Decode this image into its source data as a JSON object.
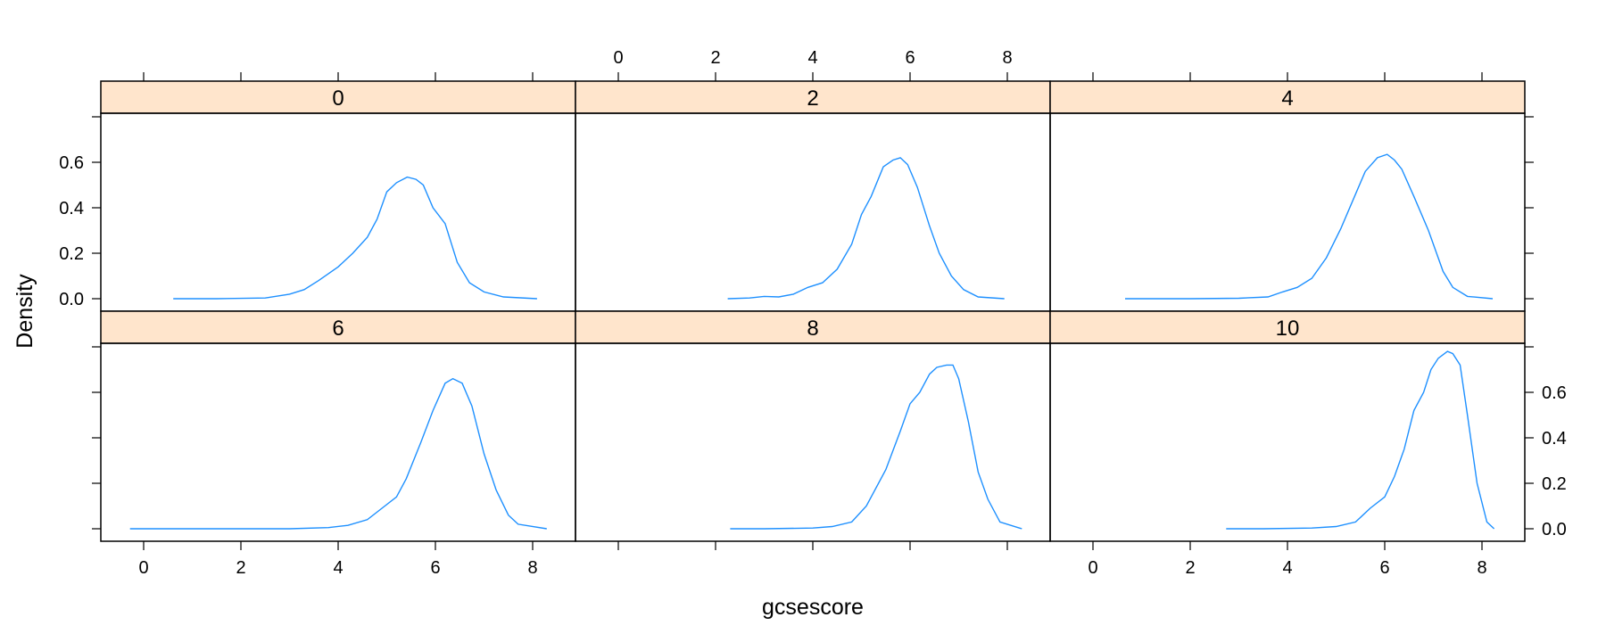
{
  "chart_data": {
    "type": "line",
    "title": "",
    "xlabel": "gcsescore",
    "ylabel": "Density",
    "layout": {
      "columns": 3,
      "rows": 2
    },
    "xlim": [
      -0.9,
      8.9
    ],
    "ylim": [
      0.0,
      0.8
    ],
    "xticks": [
      0,
      2,
      4,
      6,
      8
    ],
    "yticks": [
      0.0,
      0.2,
      0.4,
      0.6
    ],
    "ytick_labels": [
      "0.0",
      "0.2",
      "0.4",
      "0.6"
    ],
    "grid": false,
    "legend": null,
    "line_color": "#1E90FF",
    "strip_color": "#FFE5CC",
    "panels": [
      {
        "label": "0",
        "row": 0,
        "col": 0,
        "x": [
          0.61,
          1.5,
          2.5,
          3.0,
          3.3,
          3.6,
          4.0,
          4.3,
          4.6,
          4.8,
          5.0,
          5.2,
          5.42,
          5.6,
          5.75,
          5.95,
          6.2,
          6.45,
          6.7,
          7.0,
          7.4,
          8.09
        ],
        "y": [
          0.0,
          0.0,
          0.003,
          0.02,
          0.04,
          0.08,
          0.14,
          0.2,
          0.27,
          0.35,
          0.47,
          0.51,
          0.535,
          0.525,
          0.5,
          0.4,
          0.33,
          0.16,
          0.07,
          0.03,
          0.008,
          0.0
        ]
      },
      {
        "label": "2",
        "row": 0,
        "col": 1,
        "x": [
          2.25,
          2.7,
          3.0,
          3.3,
          3.6,
          3.9,
          4.2,
          4.5,
          4.8,
          5.0,
          5.2,
          5.45,
          5.65,
          5.8,
          5.95,
          6.15,
          6.4,
          6.6,
          6.85,
          7.1,
          7.4,
          7.94
        ],
        "y": [
          0.0,
          0.003,
          0.01,
          0.008,
          0.02,
          0.05,
          0.07,
          0.13,
          0.24,
          0.37,
          0.45,
          0.58,
          0.61,
          0.62,
          0.59,
          0.49,
          0.32,
          0.2,
          0.1,
          0.04,
          0.008,
          0.0
        ]
      },
      {
        "label": "4",
        "row": 0,
        "col": 2,
        "x": [
          0.66,
          2.0,
          3.0,
          3.6,
          3.9,
          4.2,
          4.5,
          4.8,
          5.1,
          5.4,
          5.6,
          5.85,
          6.05,
          6.2,
          6.35,
          6.6,
          6.9,
          7.2,
          7.4,
          7.7,
          8.22
        ],
        "y": [
          0.0,
          0.0,
          0.002,
          0.008,
          0.03,
          0.05,
          0.09,
          0.18,
          0.31,
          0.46,
          0.56,
          0.62,
          0.635,
          0.61,
          0.57,
          0.45,
          0.3,
          0.12,
          0.05,
          0.01,
          0.0
        ]
      },
      {
        "label": "6",
        "row": 1,
        "col": 0,
        "x": [
          -0.28,
          1.0,
          2.0,
          3.0,
          3.8,
          4.2,
          4.6,
          4.9,
          5.2,
          5.4,
          5.7,
          5.95,
          6.2,
          6.36,
          6.55,
          6.75,
          7.0,
          7.25,
          7.5,
          7.7,
          8.29
        ],
        "y": [
          0.0,
          0.0,
          0.0,
          0.0,
          0.005,
          0.015,
          0.04,
          0.09,
          0.14,
          0.22,
          0.38,
          0.52,
          0.64,
          0.66,
          0.64,
          0.54,
          0.33,
          0.17,
          0.06,
          0.02,
          0.0
        ]
      },
      {
        "label": "8",
        "row": 1,
        "col": 1,
        "x": [
          2.3,
          3.0,
          4.0,
          4.4,
          4.8,
          5.1,
          5.5,
          5.8,
          6.0,
          6.2,
          6.4,
          6.55,
          6.75,
          6.88,
          7.0,
          7.2,
          7.4,
          7.6,
          7.85,
          8.3
        ],
        "y": [
          0.0,
          0.0,
          0.003,
          0.01,
          0.03,
          0.1,
          0.26,
          0.43,
          0.55,
          0.6,
          0.68,
          0.71,
          0.72,
          0.72,
          0.66,
          0.47,
          0.25,
          0.13,
          0.03,
          0.0
        ]
      },
      {
        "label": "10",
        "row": 1,
        "col": 2,
        "x": [
          2.74,
          3.5,
          4.5,
          5.0,
          5.4,
          5.7,
          6.0,
          6.2,
          6.4,
          6.6,
          6.8,
          6.95,
          7.1,
          7.29,
          7.4,
          7.55,
          7.7,
          7.9,
          8.1,
          8.25
        ],
        "y": [
          0.0,
          0.0,
          0.003,
          0.01,
          0.03,
          0.09,
          0.14,
          0.23,
          0.35,
          0.52,
          0.6,
          0.7,
          0.75,
          0.78,
          0.77,
          0.72,
          0.5,
          0.2,
          0.03,
          0.0
        ]
      }
    ]
  }
}
